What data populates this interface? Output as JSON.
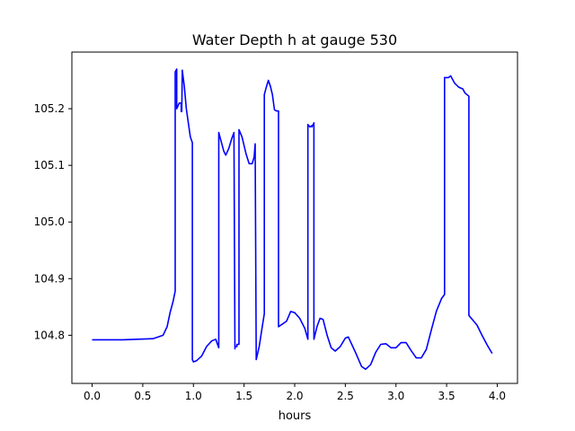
{
  "chart_data": {
    "type": "line",
    "title": "Water Depth h at gauge 530",
    "xlabel": "hours",
    "ylabel": "",
    "xlim": [
      -0.2,
      4.2
    ],
    "ylim": [
      104.715,
      105.3
    ],
    "xticks": [
      0.0,
      0.5,
      1.0,
      1.5,
      2.0,
      2.5,
      3.0,
      3.5,
      4.0
    ],
    "xtick_labels": [
      "0.0",
      "0.5",
      "1.0",
      "1.5",
      "2.0",
      "2.5",
      "3.0",
      "3.5",
      "4.0"
    ],
    "yticks": [
      104.8,
      104.9,
      105.0,
      105.1,
      105.2
    ],
    "ytick_labels": [
      "104.8",
      "104.9",
      "105.0",
      "105.1",
      "105.2"
    ],
    "grid": false,
    "legend": "none",
    "series": [
      {
        "color": "#0000ff",
        "points": [
          [
            0.0,
            104.792
          ],
          [
            0.3,
            104.792
          ],
          [
            0.6,
            104.794
          ],
          [
            0.7,
            104.8
          ],
          [
            0.74,
            104.815
          ],
          [
            0.77,
            104.84
          ],
          [
            0.8,
            104.86
          ],
          [
            0.82,
            104.878
          ],
          [
            0.82,
            105.265
          ],
          [
            0.835,
            105.27
          ],
          [
            0.835,
            105.2
          ],
          [
            0.86,
            105.21
          ],
          [
            0.88,
            105.21
          ],
          [
            0.88,
            105.195
          ],
          [
            0.885,
            105.195
          ],
          [
            0.89,
            105.268
          ],
          [
            0.91,
            105.24
          ],
          [
            0.93,
            105.2
          ],
          [
            0.95,
            105.175
          ],
          [
            0.97,
            105.15
          ],
          [
            0.99,
            105.14
          ],
          [
            0.99,
            104.757
          ],
          [
            1.0,
            104.753
          ],
          [
            1.03,
            104.755
          ],
          [
            1.08,
            104.763
          ],
          [
            1.13,
            104.78
          ],
          [
            1.18,
            104.79
          ],
          [
            1.22,
            104.793
          ],
          [
            1.25,
            104.778
          ],
          [
            1.25,
            105.158
          ],
          [
            1.27,
            105.145
          ],
          [
            1.3,
            105.125
          ],
          [
            1.32,
            105.118
          ],
          [
            1.35,
            105.13
          ],
          [
            1.38,
            105.148
          ],
          [
            1.4,
            105.158
          ],
          [
            1.41,
            104.776
          ],
          [
            1.41,
            104.78
          ],
          [
            1.43,
            104.78
          ],
          [
            1.43,
            104.784
          ],
          [
            1.45,
            104.784
          ],
          [
            1.45,
            105.163
          ],
          [
            1.48,
            105.15
          ],
          [
            1.52,
            105.12
          ],
          [
            1.55,
            105.103
          ],
          [
            1.58,
            105.103
          ],
          [
            1.6,
            105.115
          ],
          [
            1.61,
            105.138
          ],
          [
            1.62,
            104.757
          ],
          [
            1.65,
            104.78
          ],
          [
            1.68,
            104.815
          ],
          [
            1.7,
            104.838
          ],
          [
            1.7,
            105.225
          ],
          [
            1.72,
            105.238
          ],
          [
            1.74,
            105.25
          ],
          [
            1.76,
            105.24
          ],
          [
            1.78,
            105.225
          ],
          [
            1.8,
            105.198
          ],
          [
            1.82,
            105.196
          ],
          [
            1.84,
            105.196
          ],
          [
            1.84,
            104.815
          ],
          [
            1.88,
            104.82
          ],
          [
            1.92,
            104.825
          ],
          [
            1.96,
            104.842
          ],
          [
            2.0,
            104.84
          ],
          [
            2.05,
            104.83
          ],
          [
            2.1,
            104.812
          ],
          [
            2.13,
            104.793
          ],
          [
            2.13,
            105.172
          ],
          [
            2.15,
            105.168
          ],
          [
            2.17,
            105.17
          ],
          [
            2.17,
            105.168
          ],
          [
            2.19,
            105.175
          ],
          [
            2.19,
            104.793
          ],
          [
            2.22,
            104.815
          ],
          [
            2.25,
            104.83
          ],
          [
            2.28,
            104.828
          ],
          [
            2.32,
            104.8
          ],
          [
            2.36,
            104.778
          ],
          [
            2.4,
            104.772
          ],
          [
            2.45,
            104.78
          ],
          [
            2.5,
            104.795
          ],
          [
            2.53,
            104.797
          ],
          [
            2.6,
            104.77
          ],
          [
            2.66,
            104.745
          ],
          [
            2.7,
            104.74
          ],
          [
            2.75,
            104.748
          ],
          [
            2.8,
            104.77
          ],
          [
            2.85,
            104.784
          ],
          [
            2.9,
            104.785
          ],
          [
            2.95,
            104.778
          ],
          [
            3.0,
            104.778
          ],
          [
            3.05,
            104.787
          ],
          [
            3.1,
            104.787
          ],
          [
            3.15,
            104.773
          ],
          [
            3.2,
            104.76
          ],
          [
            3.25,
            104.76
          ],
          [
            3.3,
            104.775
          ],
          [
            3.35,
            104.81
          ],
          [
            3.4,
            104.843
          ],
          [
            3.45,
            104.865
          ],
          [
            3.48,
            104.872
          ],
          [
            3.48,
            105.255
          ],
          [
            3.52,
            105.255
          ],
          [
            3.54,
            105.258
          ],
          [
            3.58,
            105.245
          ],
          [
            3.62,
            105.238
          ],
          [
            3.66,
            105.235
          ],
          [
            3.68,
            105.228
          ],
          [
            3.72,
            105.222
          ],
          [
            3.72,
            104.835
          ],
          [
            3.8,
            104.818
          ],
          [
            3.85,
            104.8
          ],
          [
            3.9,
            104.783
          ],
          [
            3.95,
            104.768
          ]
        ]
      }
    ]
  }
}
